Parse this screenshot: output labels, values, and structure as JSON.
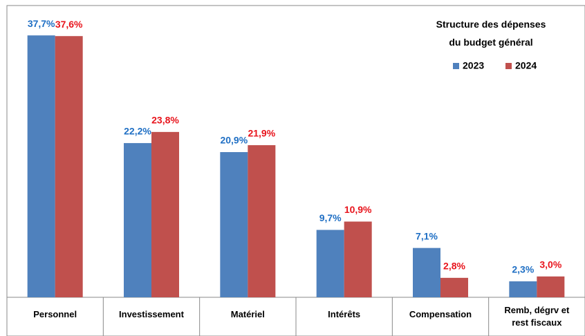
{
  "chart_data": {
    "type": "bar",
    "title": "Structure des dépenses\ndu budget général",
    "categories": [
      "Personnel",
      "Investissement",
      "Matériel",
      "Intérêts",
      "Compensation",
      "Remb, dégrv et\nrest fiscaux"
    ],
    "series": [
      {
        "name": "2023",
        "color": "#4f81bd",
        "label_color": "#1f6fc4",
        "values": [
          37.7,
          22.2,
          20.9,
          9.7,
          7.1,
          2.3
        ],
        "value_labels": [
          "37,7%",
          "22,2%",
          "20,9%",
          "9,7%",
          "7,1%",
          "2,3%"
        ]
      },
      {
        "name": "2024",
        "color": "#c0504d",
        "label_color": "#e8141c",
        "values": [
          37.6,
          23.8,
          21.9,
          10.9,
          2.8,
          3.0
        ],
        "value_labels": [
          "37,6%",
          "23,8%",
          "21,9%",
          "10,9%",
          "2,8%",
          "3,0%"
        ]
      }
    ],
    "ylim": [
      0,
      42
    ],
    "legend": "top-right"
  }
}
